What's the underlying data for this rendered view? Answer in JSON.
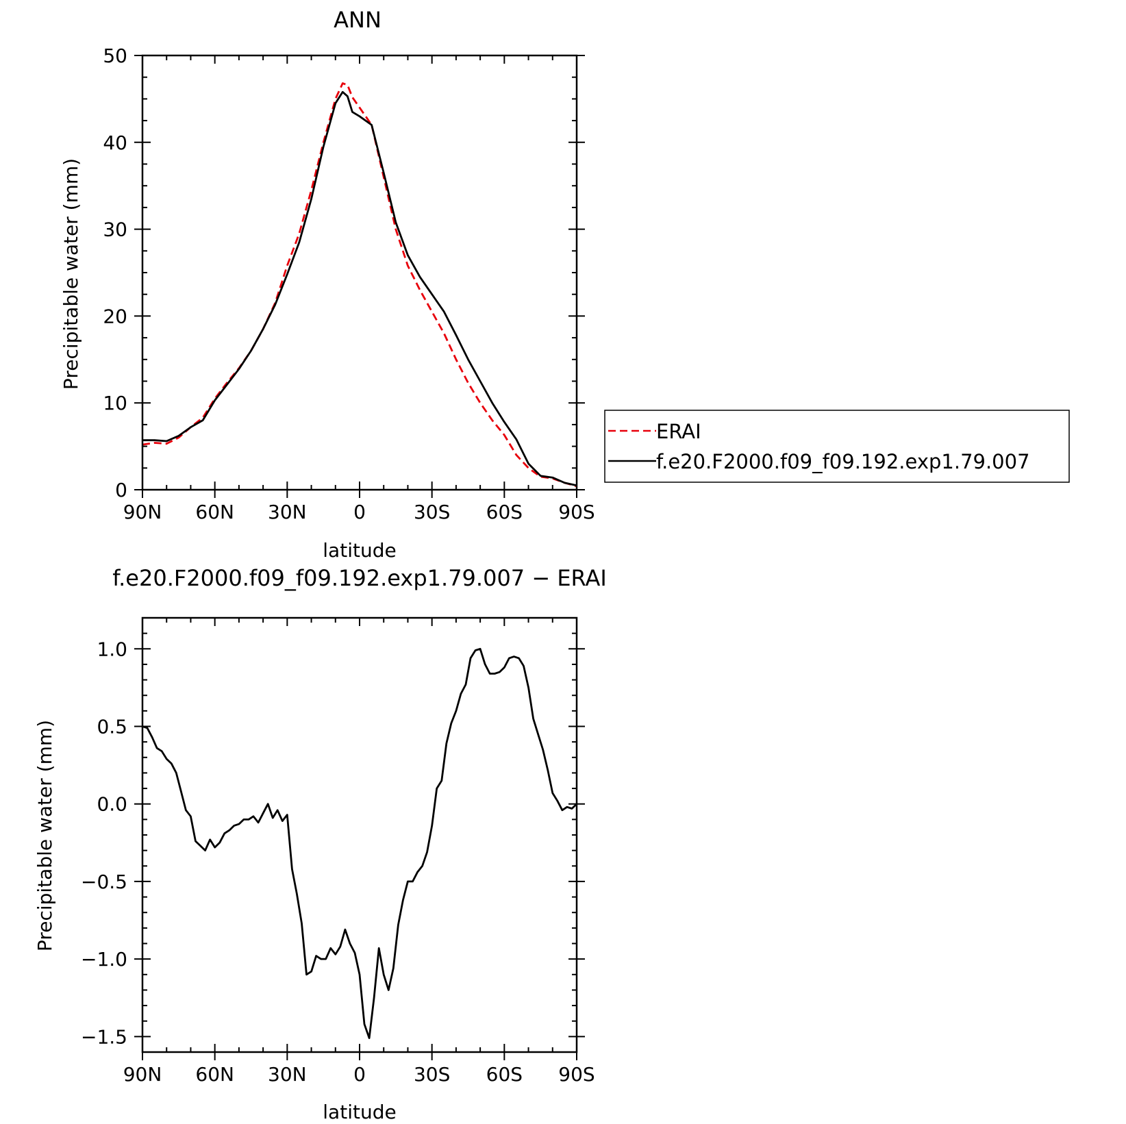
{
  "figure": {
    "background": "#ffffff"
  },
  "chart_data": [
    {
      "id": "top",
      "type": "line",
      "title": "ANN",
      "xlabel": "latitude",
      "ylabel": "Precipitable water (mm)",
      "xlim": [
        90,
        -90
      ],
      "ylim": [
        0,
        50
      ],
      "x_ticks": [
        {
          "value": 90,
          "label": "90N"
        },
        {
          "value": 60,
          "label": "60N"
        },
        {
          "value": 30,
          "label": "30N"
        },
        {
          "value": 0,
          "label": "0"
        },
        {
          "value": -30,
          "label": "30S"
        },
        {
          "value": -60,
          "label": "60S"
        },
        {
          "value": -90,
          "label": "90S"
        }
      ],
      "y_ticks": [
        {
          "value": 0,
          "label": "0"
        },
        {
          "value": 10,
          "label": "10"
        },
        {
          "value": 20,
          "label": "20"
        },
        {
          "value": 30,
          "label": "30"
        },
        {
          "value": 40,
          "label": "40"
        },
        {
          "value": 50,
          "label": "50"
        }
      ],
      "x_minor_step": 10,
      "y_minor_step": 2.5,
      "legend_position": "right",
      "series": [
        {
          "name": "ERAI",
          "color": "#e8000b",
          "dash": "dashed",
          "x": [
            90,
            85,
            80,
            75,
            70,
            65,
            60,
            55,
            50,
            45,
            40,
            35,
            30,
            25,
            20,
            15,
            10,
            7,
            5,
            3,
            0,
            -5,
            -10,
            -15,
            -20,
            -25,
            -30,
            -35,
            -40,
            -45,
            -50,
            -55,
            -60,
            -65,
            -70,
            -75,
            -80,
            -85,
            -90
          ],
          "values": [
            5.2,
            5.4,
            5.3,
            6.0,
            7.2,
            8.3,
            10.5,
            12.3,
            14.0,
            16.0,
            18.5,
            21.5,
            25.8,
            29.5,
            34.5,
            40.0,
            45.0,
            46.8,
            46.6,
            45.2,
            44.0,
            42.0,
            36.0,
            30.0,
            25.8,
            23.0,
            20.5,
            18.0,
            15.0,
            12.3,
            10.0,
            8.0,
            6.3,
            4.0,
            2.5,
            1.5,
            1.3,
            0.8,
            0.4
          ]
        },
        {
          "name": "f.e20.F2000.f09_f09.192.exp1.79.007",
          "color": "#000000",
          "dash": "solid",
          "x": [
            90,
            85,
            80,
            75,
            70,
            65,
            60,
            55,
            50,
            45,
            40,
            35,
            30,
            25,
            20,
            15,
            10,
            7,
            5,
            3,
            0,
            -5,
            -10,
            -15,
            -20,
            -25,
            -30,
            -35,
            -40,
            -45,
            -50,
            -55,
            -60,
            -65,
            -70,
            -75,
            -80,
            -85,
            -90
          ],
          "values": [
            5.7,
            5.7,
            5.6,
            6.2,
            7.2,
            8.0,
            10.3,
            12.1,
            13.9,
            16.0,
            18.5,
            21.3,
            24.8,
            28.5,
            33.5,
            39.5,
            44.5,
            45.8,
            45.3,
            43.5,
            43.0,
            42.0,
            36.5,
            30.8,
            27.0,
            24.5,
            22.5,
            20.5,
            17.8,
            15.0,
            12.5,
            10.0,
            7.8,
            5.8,
            3.0,
            1.6,
            1.4,
            0.8,
            0.5
          ]
        }
      ]
    },
    {
      "id": "bottom",
      "type": "line",
      "title": "f.e20.F2000.f09_f09.192.exp1.79.007 − ERAI",
      "xlabel": "latitude",
      "ylabel": "Precipitable water (mm)",
      "xlim": [
        90,
        -90
      ],
      "ylim": [
        -1.6,
        1.2
      ],
      "x_ticks": [
        {
          "value": 90,
          "label": "90N"
        },
        {
          "value": 60,
          "label": "60N"
        },
        {
          "value": 30,
          "label": "30N"
        },
        {
          "value": 0,
          "label": "0"
        },
        {
          "value": -30,
          "label": "30S"
        },
        {
          "value": -60,
          "label": "60S"
        },
        {
          "value": -90,
          "label": "90S"
        }
      ],
      "y_ticks": [
        {
          "value": -1.5,
          "label": "−1.5"
        },
        {
          "value": -1.0,
          "label": "−1.0"
        },
        {
          "value": -0.5,
          "label": "−0.5"
        },
        {
          "value": 0.0,
          "label": "0.0"
        },
        {
          "value": 0.5,
          "label": "0.5"
        },
        {
          "value": 1.0,
          "label": "1.0"
        }
      ],
      "x_minor_step": 10,
      "y_minor_step": 0.1,
      "series": [
        {
          "color": "#000000",
          "dash": "solid",
          "x": [
            90,
            88,
            86,
            84,
            82,
            80,
            78,
            76,
            74,
            72,
            70,
            68,
            66,
            64,
            62,
            60,
            58,
            56,
            54,
            52,
            50,
            48,
            46,
            44,
            42,
            40,
            38,
            36,
            34,
            32,
            30,
            28,
            26,
            24,
            22,
            20,
            18,
            16,
            14,
            12,
            10,
            8,
            6,
            4,
            2,
            0,
            -2,
            -4,
            -6,
            -8,
            -10,
            -12,
            -14,
            -16,
            -18,
            -20,
            -22,
            -24,
            -26,
            -28,
            -30,
            -32,
            -34,
            -36,
            -38,
            -40,
            -42,
            -44,
            -46,
            -48,
            -50,
            -52,
            -54,
            -56,
            -58,
            -60,
            -62,
            -64,
            -66,
            -68,
            -70,
            -72,
            -74,
            -76,
            -78,
            -80,
            -82,
            -84,
            -86,
            -88,
            -90
          ],
          "values": [
            0.5,
            0.49,
            0.43,
            0.36,
            0.34,
            0.29,
            0.26,
            0.2,
            0.08,
            -0.04,
            -0.08,
            -0.24,
            -0.27,
            -0.3,
            -0.23,
            -0.28,
            -0.25,
            -0.19,
            -0.17,
            -0.14,
            -0.13,
            -0.1,
            -0.1,
            -0.08,
            -0.12,
            -0.06,
            0.0,
            -0.09,
            -0.04,
            -0.11,
            -0.07,
            -0.42,
            -0.58,
            -0.77,
            -1.1,
            -1.08,
            -0.98,
            -1.0,
            -1.0,
            -0.93,
            -0.97,
            -0.92,
            -0.81,
            -0.9,
            -0.96,
            -1.1,
            -1.42,
            -1.51,
            -1.25,
            -0.93,
            -1.1,
            -1.2,
            -1.06,
            -0.78,
            -0.62,
            -0.5,
            -0.5,
            -0.44,
            -0.4,
            -0.31,
            -0.14,
            0.1,
            0.15,
            0.39,
            0.52,
            0.6,
            0.71,
            0.77,
            0.94,
            0.99,
            1.0,
            0.9,
            0.84,
            0.84,
            0.85,
            0.88,
            0.94,
            0.95,
            0.94,
            0.89,
            0.75,
            0.55,
            0.45,
            0.35,
            0.22,
            0.07,
            0.02,
            -0.04,
            -0.02,
            -0.03,
            0.0
          ]
        }
      ]
    }
  ]
}
